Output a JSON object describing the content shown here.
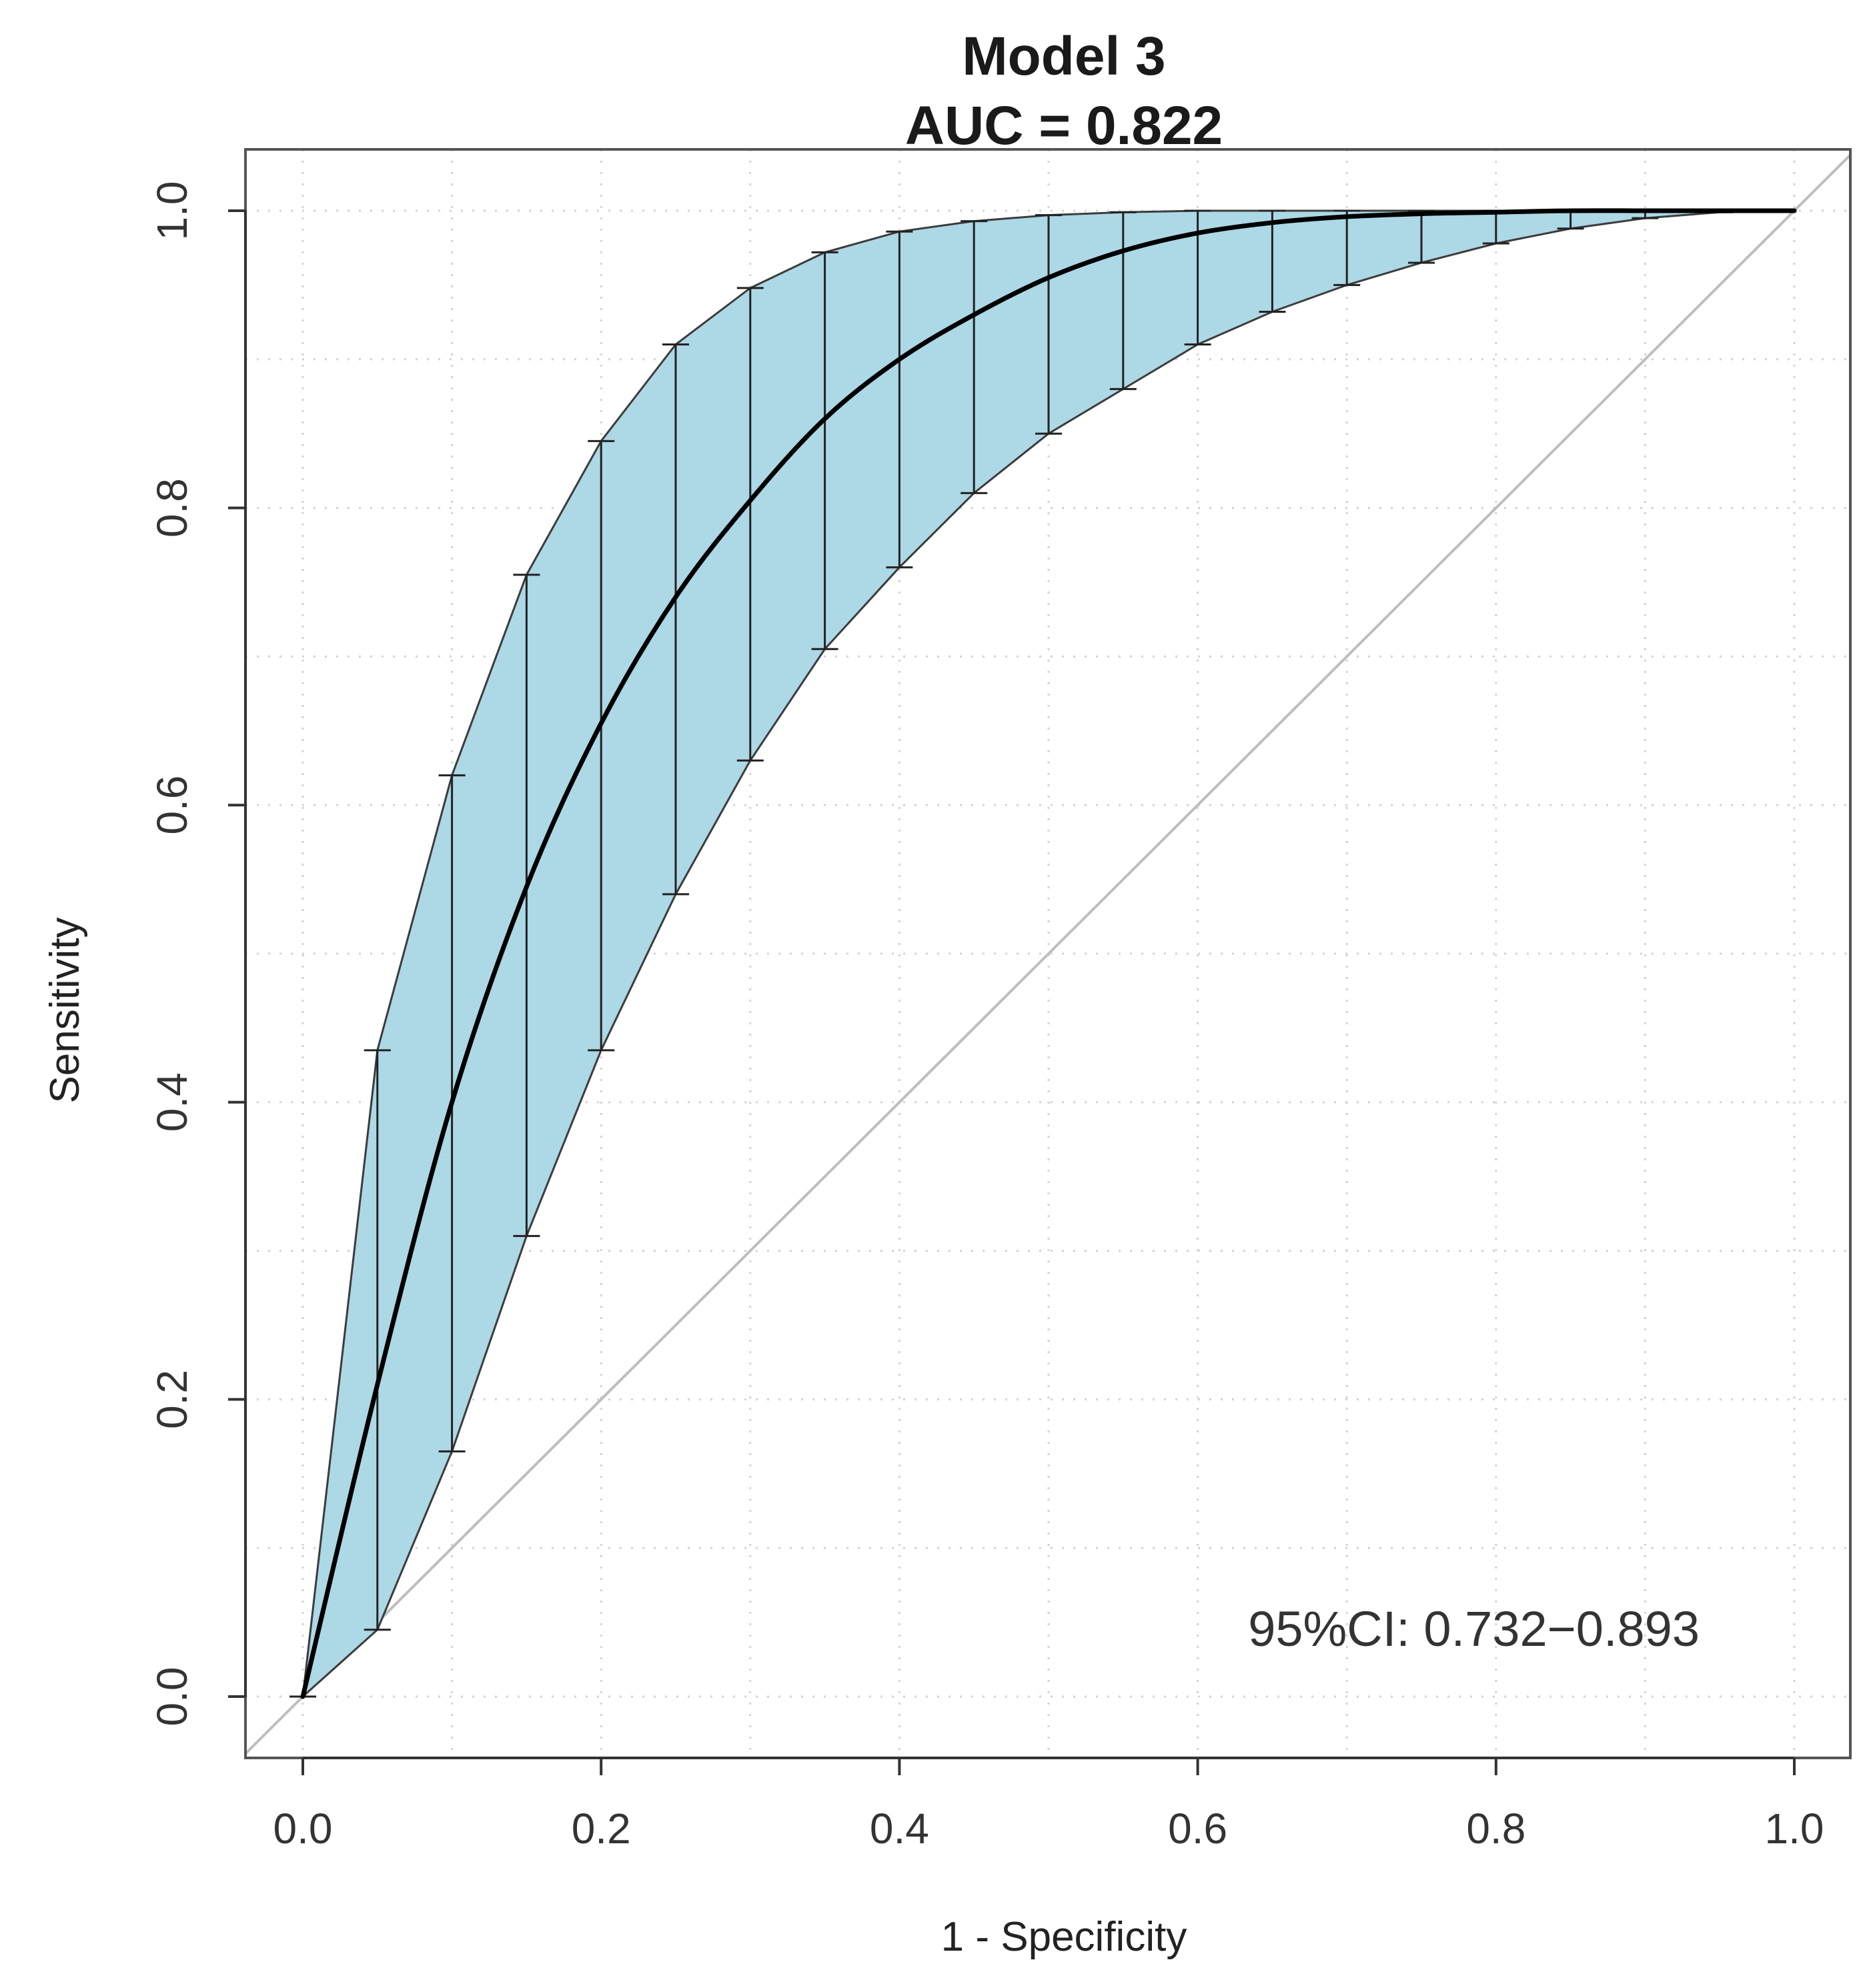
{
  "chart_data": {
    "type": "line",
    "title": "Model 3",
    "subtitle": "AUC =  0.822",
    "xlabel": "1 - Specificity",
    "ylabel": "Sensitivity",
    "annotation": "95%CI: 0.732−0.893",
    "xlim": [
      0,
      1
    ],
    "ylim": [
      0,
      1
    ],
    "x_ticks": [
      0.0,
      0.2,
      0.4,
      0.6,
      0.8,
      1.0
    ],
    "x_tick_labels": [
      "0.0",
      "0.2",
      "0.4",
      "0.6",
      "0.8",
      "1.0"
    ],
    "y_ticks": [
      0.0,
      0.2,
      0.4,
      0.6,
      0.8,
      1.0
    ],
    "y_tick_labels": [
      "0.0",
      "0.2",
      "0.4",
      "0.6",
      "0.8",
      "1.0"
    ],
    "grid": true,
    "reference_line": {
      "x": [
        0,
        1
      ],
      "y": [
        0,
        1
      ]
    },
    "series": [
      {
        "name": "ROC curve",
        "x": [
          0.0,
          0.05,
          0.1,
          0.15,
          0.2,
          0.25,
          0.3,
          0.35,
          0.4,
          0.45,
          0.5,
          0.55,
          0.6,
          0.65,
          0.7,
          0.75,
          0.8,
          0.85,
          0.9,
          0.95,
          1.0
        ],
        "y": [
          0.0,
          0.21,
          0.4,
          0.545,
          0.655,
          0.74,
          0.805,
          0.86,
          0.9,
          0.93,
          0.955,
          0.973,
          0.985,
          0.992,
          0.996,
          0.998,
          0.999,
          1.0,
          1.0,
          1.0,
          1.0
        ]
      }
    ],
    "confidence_band": {
      "name": "95% CI",
      "color": "#ADD8E6",
      "x": [
        0.0,
        0.05,
        0.1,
        0.15,
        0.2,
        0.25,
        0.3,
        0.35,
        0.4,
        0.45,
        0.5,
        0.55,
        0.6,
        0.65,
        0.7,
        0.75,
        0.8,
        0.85,
        0.9,
        0.95,
        1.0
      ],
      "lower": [
        0.0,
        0.045,
        0.165,
        0.31,
        0.435,
        0.54,
        0.63,
        0.705,
        0.76,
        0.81,
        0.85,
        0.88,
        0.91,
        0.932,
        0.95,
        0.965,
        0.978,
        0.988,
        0.995,
        0.999,
        1.0
      ],
      "upper": [
        0.0,
        0.435,
        0.62,
        0.755,
        0.845,
        0.91,
        0.948,
        0.972,
        0.986,
        0.993,
        0.997,
        0.999,
        1.0,
        1.0,
        1.0,
        1.0,
        1.0,
        1.0,
        1.0,
        1.0,
        1.0
      ]
    },
    "colors": {
      "band_fill": "#ADD8E6",
      "curve": "#000000",
      "reference": "#BEBEBE",
      "grid": "#D3D3D3",
      "frame": "#555555"
    }
  }
}
